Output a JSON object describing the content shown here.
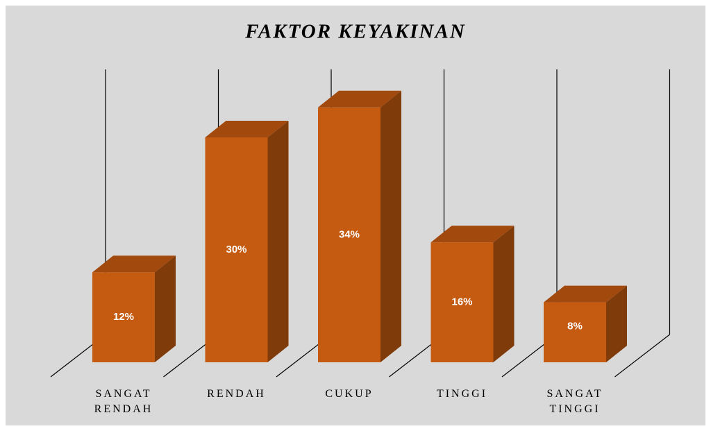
{
  "chart_data": {
    "type": "bar3d",
    "title": "FAKTOR KEYAKINAN",
    "categories": [
      "SANGAT RENDAH",
      "RENDAH",
      "CUKUP",
      "TINGGI",
      "SANGAT TINGGI"
    ],
    "values": [
      12,
      30,
      34,
      16,
      8
    ],
    "value_labels": [
      "12%",
      "30%",
      "34%",
      "16%",
      "8%"
    ],
    "color": "#c55a11"
  }
}
